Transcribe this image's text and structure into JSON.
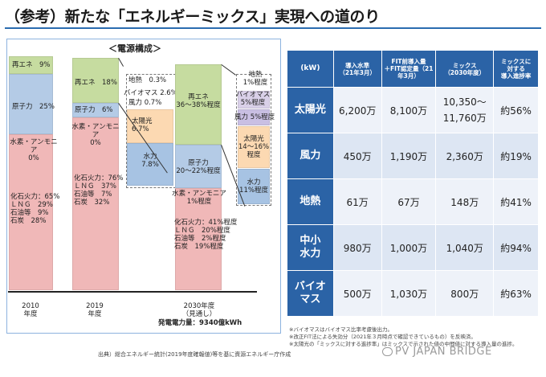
{
  "title": "（参考）新たな「エネルギーミックス」実現への道のり",
  "chart": {
    "caption": "＜電源構成＞",
    "years": {
      "y2010": "2010\n年度",
      "y2019": "2019\n年度",
      "y2030": "2030年度\n（見通し）"
    },
    "bar2010": {
      "renew": "再エネ　9%",
      "nuclear": "原子力　25%",
      "hydrogen": "水素・アンモニア\n0%",
      "thermal": "化石火力：65%\nＬＮＧ　29%\n石油等　9%\n石炭　28%"
    },
    "bar2019": {
      "renew": "再エネ　18%",
      "nuclear": "原子力　6%",
      "hydrogen": "水素・アンモニア\n0%",
      "thermal": "化石火力：76%\nＬＮＧ　37%\n石油等　7%\n石炭　32%"
    },
    "breakdown2019": {
      "geo": "地熱　0.3%",
      "bio": "バイオマス 2.6%",
      "wind": "風力 0.7%",
      "solar": "太陽光\n6.7%",
      "hydro": "水力\n7.8%"
    },
    "bar2030": {
      "renew": "再エネ\n36～38%程度",
      "nuclear": "原子力\n20～22%程度",
      "hydrogen": "水素・アンモニア\n1%程度",
      "thermal": "化石火力：41%程度\nＬＮＧ　20%程度\n石油等　2%程度\n石炭　19%程度"
    },
    "breakdown2030": {
      "geo": "地熱\n1%程度",
      "bio": "バイオマス\n5%程度",
      "wind": "風力 5%程度",
      "solar": "太陽光\n14～16%\n程度",
      "hydro": "水力\n11%程度"
    },
    "total_power": "発電電力量：9340億kWh",
    "colors": {
      "renew": "#c6dca0",
      "nuclear": "#b4cbe6",
      "thermal": "#f0b8b8",
      "solar": "#fcd9b2",
      "bio": "#d9d0e8",
      "wind": "#c9bfe3",
      "geo": "#f7cdb9",
      "hydro": "#a7c3e3"
    }
  },
  "table": {
    "headers": [
      "(kW)",
      "導入水準\n（21年3月）",
      "FIT前導入量\n＋FIT認定量（21年3月）",
      "ミックス\n（2030年度）",
      "ミックスに\n対する\n導入進捗率"
    ],
    "rows": [
      {
        "label": "太陽光",
        "current": "6,200万",
        "fit": "8,100万",
        "mix": "10,350～\n11,760万",
        "progress": "約56%"
      },
      {
        "label": "風力",
        "current": "450万",
        "fit": "1,190万",
        "mix": "2,360万",
        "progress": "約19%"
      },
      {
        "label": "地熱",
        "current": "61万",
        "fit": "67万",
        "mix": "148万",
        "progress": "約41%"
      },
      {
        "label": "中小\n水力",
        "current": "980万",
        "fit": "1,000万",
        "mix": "1,040万",
        "progress": "約94%"
      },
      {
        "label": "バイオ\nマス",
        "current": "500万",
        "fit": "1,030万",
        "mix": "800万",
        "progress": "約63%"
      }
    ]
  },
  "notes": [
    "※バイオマスはバイオマス比率考慮後出力。",
    "※改正FIT法による失効分（2021年３月時点で確認できているもの）を反映済。",
    "※太陽光の「ミックスに対する進捗率」はミックスで示された値の中間値に対する導入量の進捗。"
  ],
  "source": "出典）総合エネルギー統計(2019年度確報値)等を基に資源エネルギー庁作成",
  "watermark": "PV JAPAN BRIDGE"
}
